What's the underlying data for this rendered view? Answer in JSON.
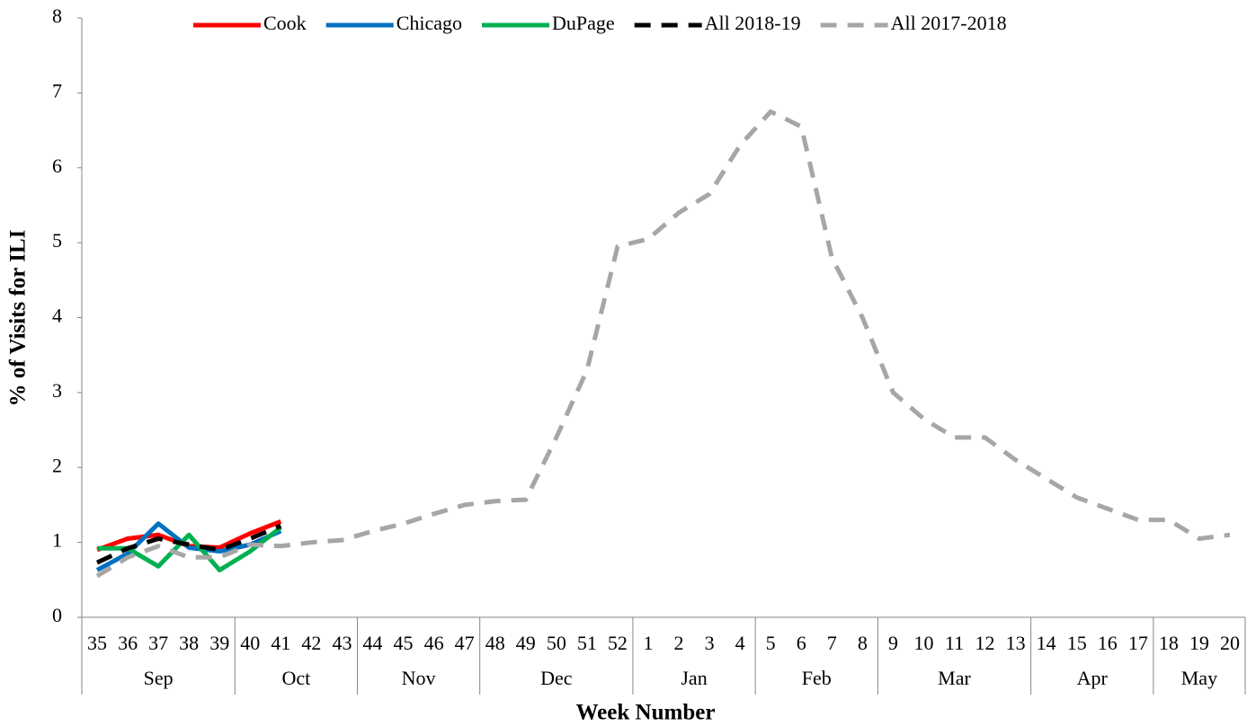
{
  "chart_data": {
    "type": "line",
    "x_label": "Week Number",
    "y_label": "% of Visits for ILI",
    "categories": [
      "35",
      "36",
      "37",
      "38",
      "39",
      "40",
      "41",
      "42",
      "43",
      "44",
      "45",
      "46",
      "47",
      "48",
      "49",
      "50",
      "51",
      "52",
      "1",
      "2",
      "3",
      "4",
      "5",
      "6",
      "7",
      "8",
      "9",
      "10",
      "11",
      "12",
      "13",
      "14",
      "15",
      "16",
      "17",
      "18",
      "19",
      "20"
    ],
    "x_groups": [
      {
        "label": "Sep",
        "count": 5
      },
      {
        "label": "Oct",
        "count": 4
      },
      {
        "label": "Nov",
        "count": 4
      },
      {
        "label": "Dec",
        "count": 5
      },
      {
        "label": "Jan",
        "count": 4
      },
      {
        "label": "Feb",
        "count": 4
      },
      {
        "label": "Mar",
        "count": 5
      },
      {
        "label": "Apr",
        "count": 4
      },
      {
        "label": "May",
        "count": 3
      }
    ],
    "ylim": [
      0,
      8
    ],
    "yticks": [
      0,
      1,
      2,
      3,
      4,
      5,
      6,
      7,
      8
    ],
    "legend": "top",
    "series": [
      {
        "name": "Cook",
        "color": "#ff0000",
        "dashed": false,
        "values": [
          0.9,
          1.05,
          1.1,
          0.95,
          0.93,
          1.12,
          1.28,
          null,
          null,
          null,
          null,
          null,
          null,
          null,
          null,
          null,
          null,
          null,
          null,
          null,
          null,
          null,
          null,
          null,
          null,
          null,
          null,
          null,
          null,
          null,
          null,
          null,
          null,
          null,
          null,
          null,
          null,
          null
        ]
      },
      {
        "name": "Chicago",
        "color": "#0070c0",
        "dashed": false,
        "values": [
          0.63,
          0.85,
          1.25,
          0.93,
          0.88,
          0.97,
          1.15,
          null,
          null,
          null,
          null,
          null,
          null,
          null,
          null,
          null,
          null,
          null,
          null,
          null,
          null,
          null,
          null,
          null,
          null,
          null,
          null,
          null,
          null,
          null,
          null,
          null,
          null,
          null,
          null,
          null,
          null,
          null
        ]
      },
      {
        "name": "DuPage",
        "color": "#00b050",
        "dashed": false,
        "values": [
          0.92,
          0.92,
          0.68,
          1.1,
          0.63,
          0.88,
          1.2,
          null,
          null,
          null,
          null,
          null,
          null,
          null,
          null,
          null,
          null,
          null,
          null,
          null,
          null,
          null,
          null,
          null,
          null,
          null,
          null,
          null,
          null,
          null,
          null,
          null,
          null,
          null,
          null,
          null,
          null,
          null
        ]
      },
      {
        "name": "All 2018-19",
        "color": "#000000",
        "dashed": true,
        "values": [
          0.73,
          0.92,
          1.05,
          0.97,
          0.9,
          1.05,
          1.22,
          null,
          null,
          null,
          null,
          null,
          null,
          null,
          null,
          null,
          null,
          null,
          null,
          null,
          null,
          null,
          null,
          null,
          null,
          null,
          null,
          null,
          null,
          null,
          null,
          null,
          null,
          null,
          null,
          null,
          null,
          null
        ]
      },
      {
        "name": "All 2017-2018",
        "color": "#a6a6a6",
        "dashed": true,
        "values": [
          0.55,
          0.8,
          0.95,
          0.8,
          0.8,
          0.97,
          0.95,
          1.0,
          1.03,
          1.15,
          1.25,
          1.38,
          1.5,
          1.55,
          1.57,
          2.4,
          3.3,
          4.95,
          5.05,
          5.4,
          5.65,
          6.3,
          6.75,
          6.55,
          4.8,
          4.0,
          3.0,
          2.65,
          2.4,
          2.4,
          2.1,
          1.85,
          1.6,
          1.45,
          1.3,
          1.3,
          1.05,
          1.1
        ]
      }
    ]
  }
}
